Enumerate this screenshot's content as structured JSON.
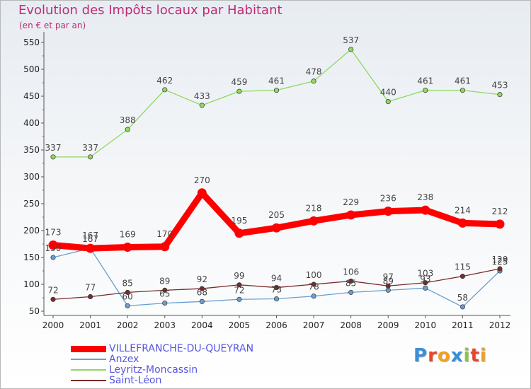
{
  "header": {
    "title": "Evolution des Impôts locaux par Habitant",
    "subtitle": "(en € et par an)"
  },
  "chart_data": {
    "type": "line",
    "title": "Evolution des Impôts locaux par Habitant",
    "subtitle": "(en € et par an)",
    "xlabel": "",
    "ylabel": "",
    "x": [
      2000,
      2001,
      2002,
      2003,
      2004,
      2005,
      2006,
      2007,
      2008,
      2009,
      2010,
      2011,
      2012
    ],
    "ylim": [
      50,
      550
    ],
    "yticks": [
      50,
      100,
      150,
      200,
      250,
      300,
      350,
      400,
      450,
      500,
      550
    ],
    "grid": false,
    "legend_position": "bottom-left",
    "series": [
      {
        "name": "VILLEFRANCHE-DU-QUEYRAN",
        "color": "#ff0000",
        "values": [
          173,
          167,
          169,
          170,
          270,
          195,
          205,
          218,
          229,
          236,
          238,
          214,
          212
        ]
      },
      {
        "name": "Anzex",
        "color": "#6a9fd0",
        "values": [
          150,
          167,
          60,
          65,
          68,
          72,
          73,
          78,
          85,
          89,
          93,
          58,
          125
        ]
      },
      {
        "name": "Leyritz-Moncassin",
        "color": "#90d860",
        "values": [
          337,
          337,
          388,
          462,
          433,
          459,
          461,
          478,
          537,
          440,
          461,
          461,
          453
        ]
      },
      {
        "name": "Saint-Léon",
        "color": "#7a2a2a",
        "values": [
          72,
          77,
          85,
          89,
          92,
          99,
          94,
          100,
          106,
          97,
          103,
          115,
          129
        ]
      }
    ]
  },
  "logo": {
    "letters": [
      "P",
      "r",
      "o",
      "x",
      "i",
      "t",
      "i"
    ],
    "colors": [
      "#3a8fd8",
      "#e8452c",
      "#f0a020",
      "#3a8fd8",
      "#8cc63f",
      "#e8452c",
      "#f0a020"
    ]
  }
}
